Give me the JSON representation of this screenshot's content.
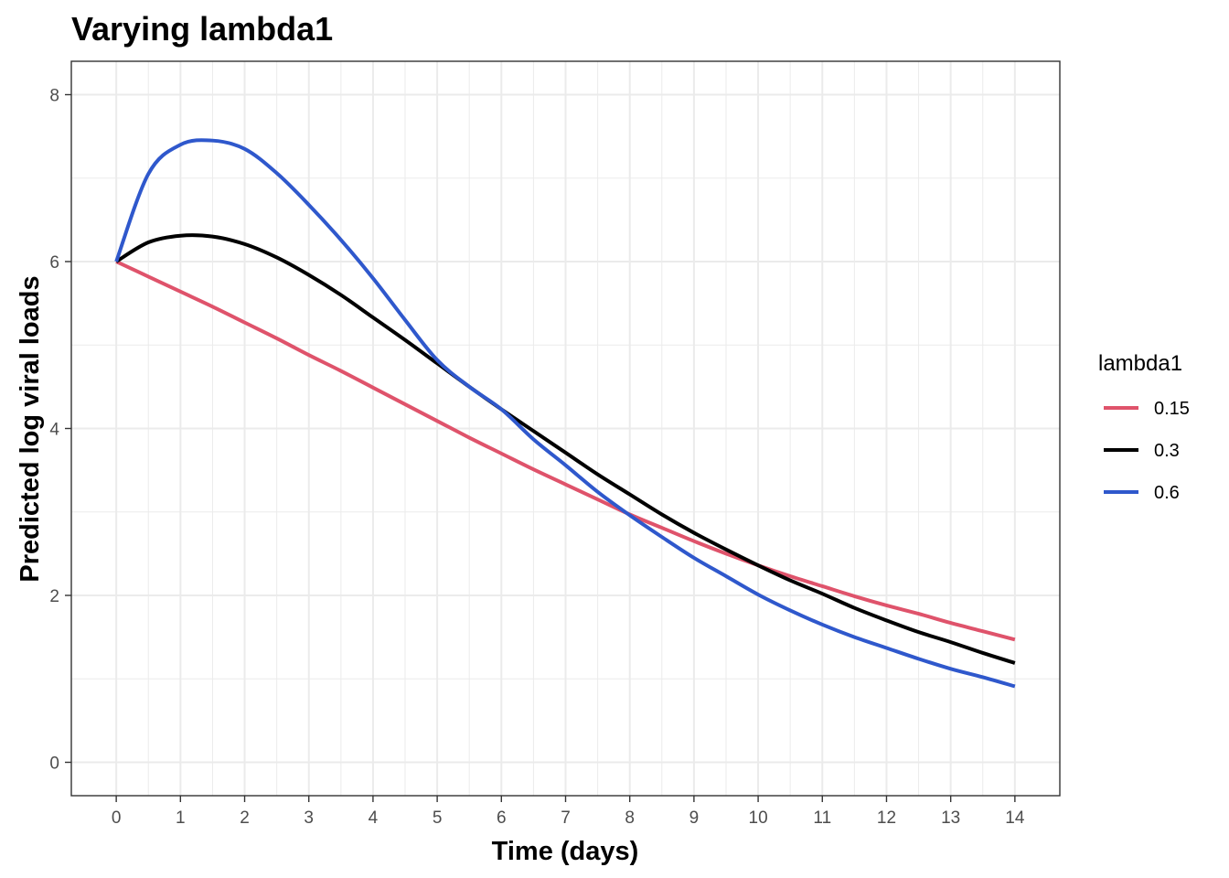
{
  "chart_data": {
    "type": "line",
    "title": "Varying lambda1",
    "xlabel": "Time (days)",
    "ylabel": "Predicted log viral loads",
    "xlim": [
      -0.7,
      14.7
    ],
    "ylim": [
      -0.4,
      8.4
    ],
    "x_ticks": [
      "0",
      "1",
      "2",
      "3",
      "4",
      "5",
      "6",
      "7",
      "8",
      "9",
      "10",
      "11",
      "12",
      "13",
      "14"
    ],
    "y_ticks": [
      "0",
      "2",
      "4",
      "6",
      "8"
    ],
    "grid": true,
    "legend": {
      "title": "lambda1",
      "position": "right"
    },
    "x": [
      0,
      0.5,
      1,
      1.5,
      2,
      2.5,
      3,
      3.5,
      4,
      4.5,
      5,
      5.5,
      6,
      6.5,
      7,
      7.5,
      8,
      8.5,
      9,
      9.5,
      10,
      10.5,
      11,
      11.5,
      12,
      12.5,
      13,
      13.5,
      14
    ],
    "series": [
      {
        "name": "0.15",
        "color": "#df536b",
        "values": [
          6.0,
          5.82,
          5.64,
          5.46,
          5.27,
          5.08,
          4.88,
          4.69,
          4.49,
          4.29,
          4.09,
          3.89,
          3.7,
          3.51,
          3.33,
          3.15,
          2.97,
          2.81,
          2.65,
          2.5,
          2.36,
          2.23,
          2.11,
          1.99,
          1.88,
          1.78,
          1.67,
          1.57,
          1.47
        ]
      },
      {
        "name": "0.3",
        "color": "#000000",
        "values": [
          6.0,
          6.23,
          6.31,
          6.3,
          6.21,
          6.05,
          5.84,
          5.6,
          5.33,
          5.06,
          4.78,
          4.5,
          4.23,
          3.97,
          3.71,
          3.45,
          3.21,
          2.97,
          2.75,
          2.55,
          2.36,
          2.18,
          2.02,
          1.85,
          1.7,
          1.56,
          1.44,
          1.31,
          1.19
        ]
      },
      {
        "name": "0.6",
        "color": "#2f58cc",
        "values": [
          6.0,
          7.05,
          7.4,
          7.45,
          7.35,
          7.06,
          6.68,
          6.26,
          5.8,
          5.3,
          4.82,
          4.5,
          4.23,
          3.87,
          3.56,
          3.24,
          2.96,
          2.7,
          2.45,
          2.23,
          2.01,
          1.82,
          1.65,
          1.5,
          1.37,
          1.24,
          1.12,
          1.02,
          0.91
        ]
      }
    ]
  }
}
